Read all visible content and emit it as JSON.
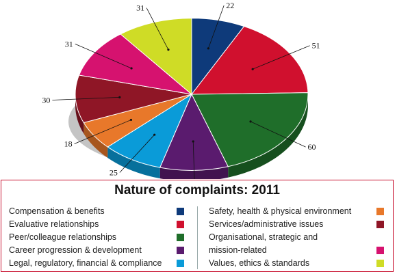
{
  "chart_data": {
    "type": "pie",
    "title": "",
    "slices": [
      {
        "label": "Compensation & benefits",
        "value": 22,
        "color": "#0e3a7a"
      },
      {
        "label": "Evaluative relationships",
        "value": 51,
        "color": "#d0102e"
      },
      {
        "label": "Peer/colleague relationships",
        "value": 60,
        "color": "#1f6e2a"
      },
      {
        "label": "Career progression & development",
        "value": 28,
        "color": "#5a1b6e"
      },
      {
        "label": "Legal, regulatory, financial & compliance",
        "value": 25,
        "color": "#0a9bd8"
      },
      {
        "label": "Safety, health & physical environment",
        "value": 18,
        "color": "#e8782a"
      },
      {
        "label": "Services/administrative issues",
        "value": 30,
        "color": "#8f1626"
      },
      {
        "label": "Organisational, strategic and mission-related",
        "value": 31,
        "color": "#d6126f"
      },
      {
        "label": "Values, ethics & standards",
        "value": 31,
        "color": "#cfdc26"
      }
    ]
  },
  "legend": {
    "title": "Nature of complaints: 2011",
    "items": [
      {
        "text": "Compensation & benefits",
        "color": "#0e3a7a"
      },
      {
        "text": "Evaluative relationships",
        "color": "#d0102e"
      },
      {
        "text": "Peer/colleague relationships",
        "color": "#1f6e2a"
      },
      {
        "text": "Career progression & development",
        "color": "#5a1b6e"
      },
      {
        "text": "Legal, regulatory, financial & compliance",
        "color": "#0a9bd8"
      },
      {
        "text": "Safety, health & physical environment",
        "color": "#e8782a"
      },
      {
        "text": "Services/administrative issues",
        "color": "#8f1626"
      },
      {
        "text": "Organisational, strategic and",
        "text2": "mission-related",
        "color": "#d6126f"
      },
      {
        "text": "Values, ethics & standards",
        "color": "#cfdc26"
      }
    ]
  }
}
